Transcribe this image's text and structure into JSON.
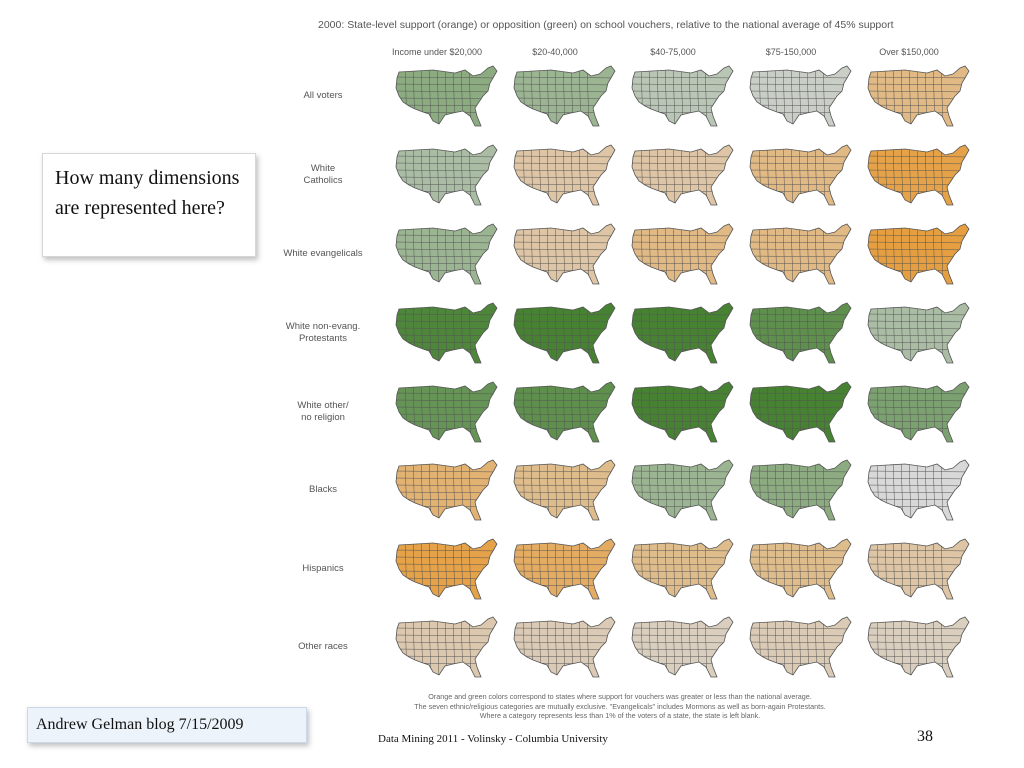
{
  "figure": {
    "title": "2000:  State-level support (orange) or opposition (green) on school vouchers, relative to the national average of 45% support",
    "columns": [
      "Income under $20,000",
      "$20-40,000",
      "$40-75,000",
      "$75-150,000",
      "Over $150,000"
    ],
    "rows": [
      {
        "label": "All voters",
        "levels": [
          -0.5,
          -0.4,
          -0.2,
          -0.1,
          0.5
        ]
      },
      {
        "label": "White\nCatholics",
        "levels": [
          -0.3,
          0.3,
          0.3,
          0.5,
          0.85
        ]
      },
      {
        "label": "White evangelicals",
        "levels": [
          -0.4,
          0.3,
          0.5,
          0.5,
          0.9
        ]
      },
      {
        "label": "White non-evang.\nProtestants",
        "levels": [
          -0.9,
          -0.95,
          -0.95,
          -0.8,
          -0.3
        ]
      },
      {
        "label": "White other/\nno religion",
        "levels": [
          -0.75,
          -0.8,
          -0.95,
          -0.95,
          -0.6
        ]
      },
      {
        "label": "Blacks",
        "levels": [
          0.6,
          0.45,
          -0.4,
          -0.5,
          0.0
        ]
      },
      {
        "label": "Hispanics",
        "levels": [
          0.85,
          0.7,
          0.45,
          0.45,
          0.3
        ]
      },
      {
        "label": "Other races",
        "levels": [
          0.25,
          0.2,
          0.15,
          0.2,
          0.15
        ]
      }
    ],
    "colors": {
      "support": "#e8992f",
      "oppose": "#3f7d2a",
      "neutral": "#d8d8d8",
      "blank": "#ffffff",
      "border": "#555555"
    },
    "caption_lines": [
      "Orange and green colors correspond to states where support for vouchers was greater or less than the national average.",
      "The seven ethnic/religious categories are mutually exclusive.  \"Evangelicals\" includes Mormons as well as born-again Protestants.",
      "Where a category represents less than 1% of the voters of a state, the state is left blank."
    ]
  },
  "question": "How many dimensions are represented here?",
  "credit": "Andrew Gelman blog 7/15/2009",
  "footer": "Data Mining 2011  - Volinsky - Columbia University",
  "page_number": "38"
}
